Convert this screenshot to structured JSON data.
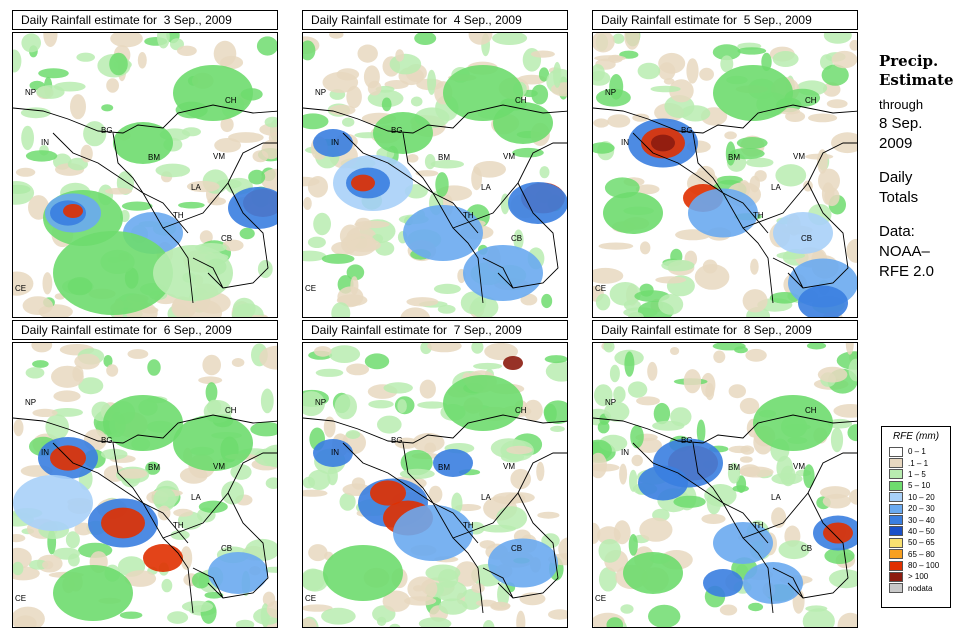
{
  "panels": [
    {
      "title": "Daily Rainfall estimate for  3 Sep., 2009",
      "date": "3 Sep."
    },
    {
      "title": "Daily Rainfall estimate for  4 Sep., 2009",
      "date": "4 Sep."
    },
    {
      "title": "Daily Rainfall estimate for  5 Sep., 2009",
      "date": "5 Sep."
    },
    {
      "title": "Daily Rainfall estimate for  6 Sep., 2009",
      "date": "6 Sep."
    },
    {
      "title": "Daily Rainfall estimate for  7 Sep., 2009",
      "date": "7 Sep."
    },
    {
      "title": "Daily Rainfall estimate for  8 Sep., 2009",
      "date": "8 Sep."
    }
  ],
  "map_labels": {
    "NP": "NP",
    "IN": "IN",
    "BG": "BG",
    "CH": "CH",
    "BM": "BM",
    "VM": "VM",
    "LA": "LA",
    "TH": "TH",
    "CB": "CB",
    "CE": "CE"
  },
  "sidebar": {
    "heading1": "Precip.",
    "heading2": "Estimate",
    "through": "through",
    "date_line1": "8 Sep.",
    "date_line2": "2009",
    "daily": "Daily",
    "totals": "Totals",
    "data_label": "Data:",
    "source1": "NOAA–",
    "source2": "RFE 2.0"
  },
  "legend": {
    "title": "RFE (mm)",
    "entries": [
      {
        "label": "0 – 1",
        "color": "#ffffff"
      },
      {
        "label": ".1 – 1",
        "color": "#e8d8c0"
      },
      {
        "label": "1 – 5",
        "color": "#b8ecb0"
      },
      {
        "label": "5 – 10",
        "color": "#6edc6e"
      },
      {
        "label": "10 – 20",
        "color": "#a8d0f8"
      },
      {
        "label": "20 – 30",
        "color": "#6aaaf0"
      },
      {
        "label": "30 – 40",
        "color": "#3a7ee0"
      },
      {
        "label": "40 – 50",
        "color": "#1a50c8"
      },
      {
        "label": "50 – 65",
        "color": "#f8e070"
      },
      {
        "label": "65 – 80",
        "color": "#f8a020"
      },
      {
        "label": "80 – 100",
        "color": "#e03000"
      },
      {
        "label": "> 100",
        "color": "#8c1c10"
      },
      {
        "label": "nodata",
        "color": "#c8c8c8"
      }
    ]
  }
}
